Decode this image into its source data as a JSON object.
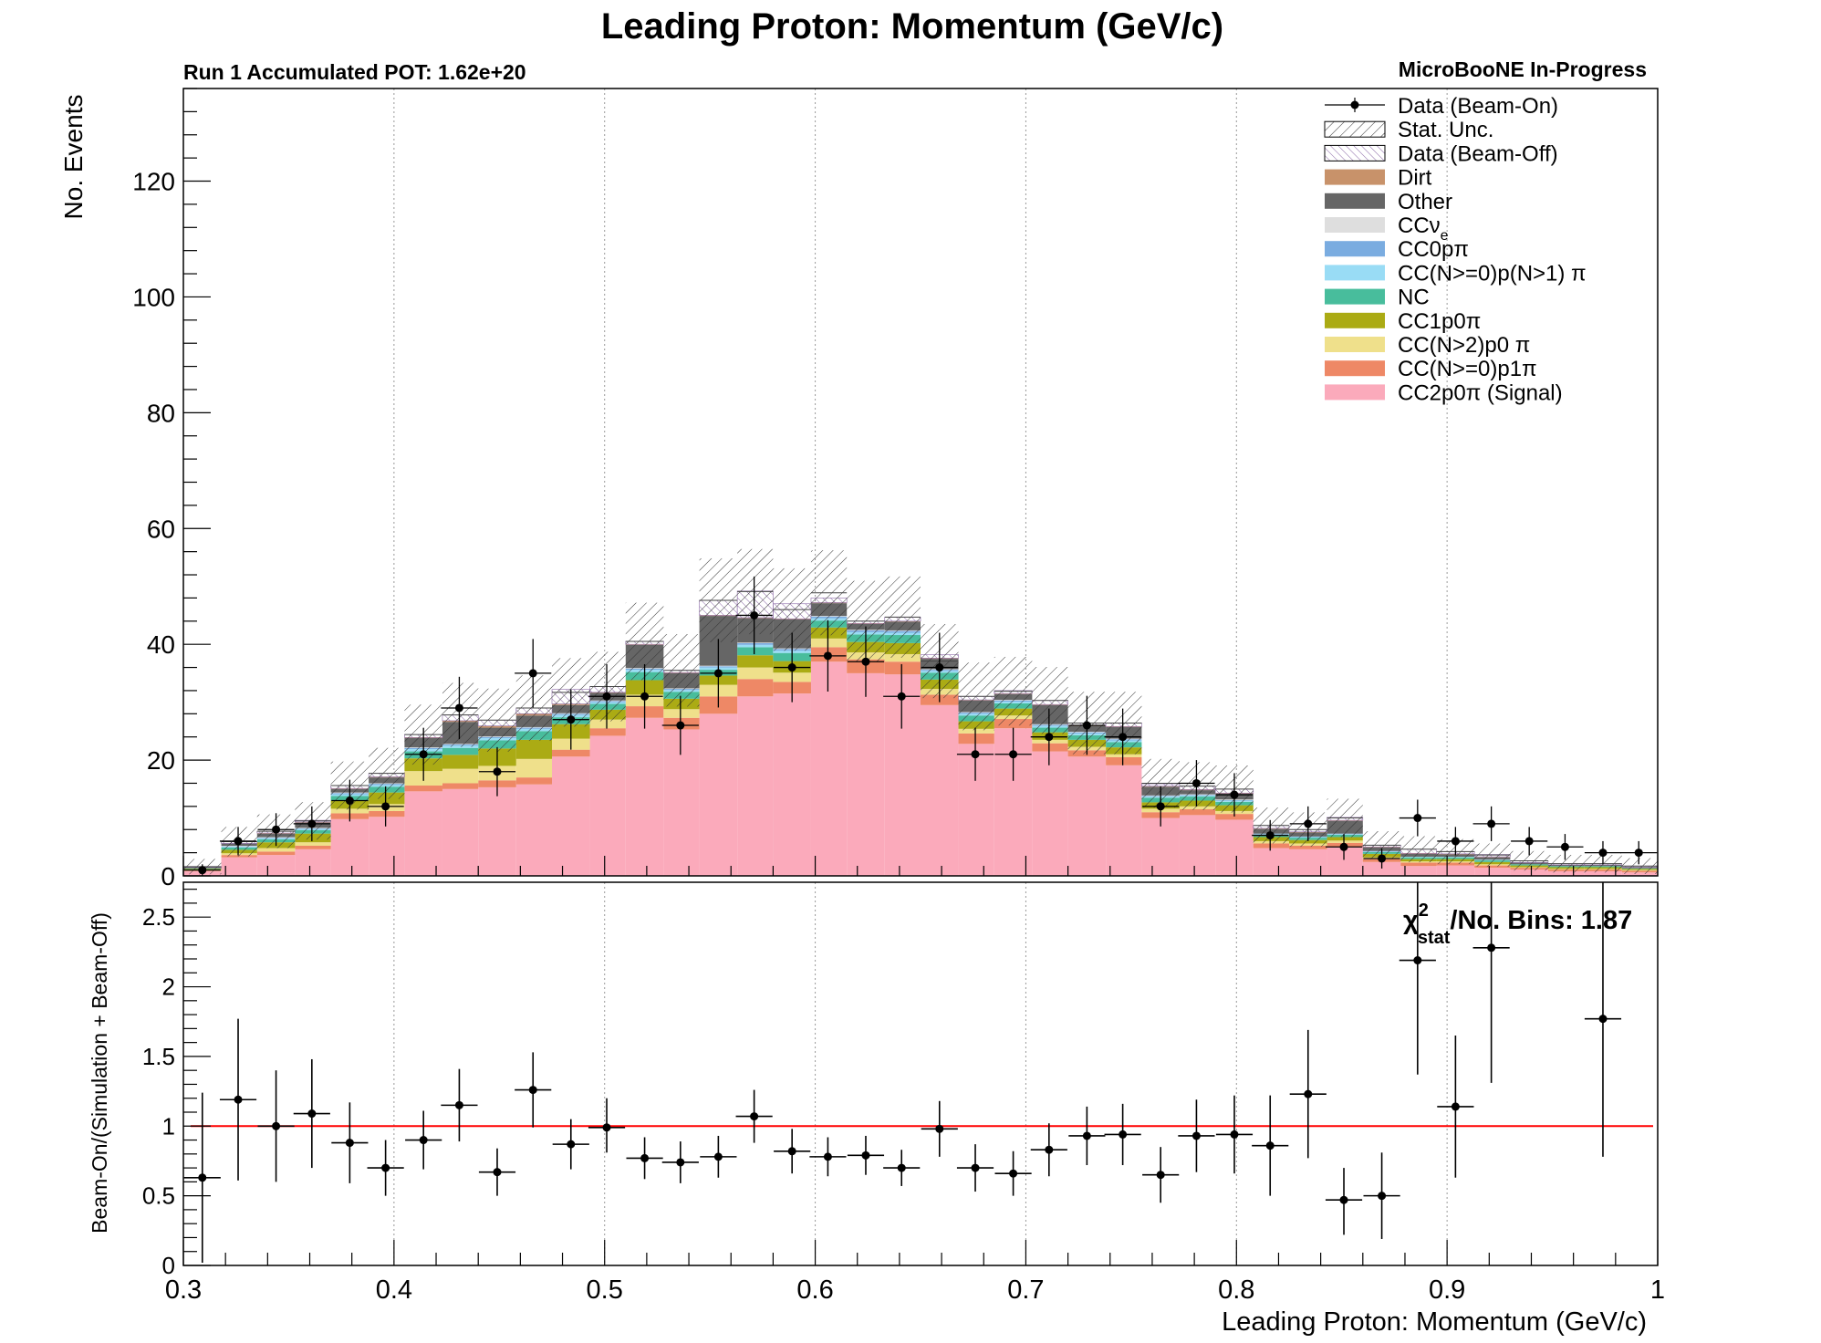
{
  "title": "Leading Proton: Momentum (GeV/c)",
  "pot_label": "Run 1 Accumulated POT: 1.62e+20",
  "collab_label": "MicroBooNE In-Progress",
  "chi2_label": {
    "chi": "χ",
    "sup": "2",
    "sub": "stat",
    "rest": "/No. Bins: 1.87"
  },
  "colors": {
    "stat_hatch": "#333333",
    "beam_off": "#8c6aa8",
    "dirt": "#c8926a",
    "other": "#666666",
    "ccnue": "#dedede",
    "cc0p": "#7aace0",
    "ccnpnpi": "#99dcf5",
    "nc": "#48bd9c",
    "cc1p0pi": "#abab14",
    "ccn2p0pi": "#efe08b",
    "ccnp1pi": "#ee8866",
    "signal": "#fbaabb",
    "ratio_line": "#ff0000"
  },
  "chart_data": [
    {
      "type": "bar",
      "subtype": "stacked-histogram",
      "title": "Leading Proton: Momentum (GeV/c)",
      "ylabel": "No. Events",
      "xlim": [
        0.3,
        1.0
      ],
      "ylim": [
        0,
        136
      ],
      "y_ticks": [
        "0",
        "20",
        "40",
        "60",
        "80",
        "100",
        "120"
      ],
      "grid": "vertical dotted at x ticks",
      "legend_position": "top-right",
      "legend": [
        {
          "key": "data",
          "label": "Data (Beam-On)",
          "style": "marker"
        },
        {
          "key": "stat",
          "label": "Stat. Unc.",
          "style": "hatch"
        },
        {
          "key": "beam_off",
          "label": "Data (Beam-Off)",
          "style": "hatch-purple"
        },
        {
          "key": "dirt",
          "label": "Dirt",
          "style": "fill"
        },
        {
          "key": "other",
          "label": "Other",
          "style": "fill"
        },
        {
          "key": "ccnue",
          "label": "CCν",
          "sub": "e",
          "style": "fill"
        },
        {
          "key": "cc0p",
          "label": "CC0pπ",
          "style": "fill"
        },
        {
          "key": "ccnpnpi",
          "label": "CC(N>=0)p(N>1) π",
          "style": "fill"
        },
        {
          "key": "nc",
          "label": "NC",
          "style": "fill"
        },
        {
          "key": "cc1p0pi",
          "label": "CC1p0π",
          "style": "fill"
        },
        {
          "key": "ccn2p0pi",
          "label": "CC(N>2)p0 π",
          "style": "fill"
        },
        {
          "key": "ccnp1pi",
          "label": "CC(N>=0)p1π",
          "style": "fill"
        },
        {
          "key": "signal",
          "label": "CC2p0π (Signal)",
          "style": "fill"
        }
      ],
      "bin_edges": [
        0.3,
        0.318,
        0.335,
        0.353,
        0.37,
        0.388,
        0.405,
        0.423,
        0.44,
        0.458,
        0.475,
        0.493,
        0.51,
        0.528,
        0.545,
        0.563,
        0.58,
        0.598,
        0.615,
        0.633,
        0.65,
        0.668,
        0.685,
        0.703,
        0.72,
        0.738,
        0.755,
        0.773,
        0.79,
        0.808,
        0.825,
        0.843,
        0.86,
        0.878,
        0.895,
        0.913,
        0.93,
        0.948,
        0.965,
        0.983,
        1.0
      ],
      "stack_order": [
        "signal",
        "ccnp1pi",
        "ccn2p0pi",
        "cc1p0pi",
        "nc",
        "ccnpnpi",
        "cc0p",
        "ccnue",
        "other",
        "dirt",
        "beam_off"
      ],
      "series": [
        {
          "name": "CC2p0π (Signal)",
          "key": "signal",
          "values": [
            0.8,
            3.2,
            3.6,
            4.6,
            9.8,
            10.2,
            14.6,
            15.0,
            15.3,
            15.8,
            20.6,
            24.2,
            27.3,
            25.3,
            28.0,
            31.0,
            31.5,
            37.0,
            35.0,
            34.8,
            29.5,
            22.8,
            25.5,
            21.5,
            20.6,
            19.1,
            10.0,
            10.5,
            9.7,
            4.8,
            4.6,
            5.0,
            2.4,
            1.7,
            1.8,
            1.4,
            1.1,
            0.8,
            0.8,
            0.6
          ]
        },
        {
          "name": "CC(N>=0)p1π",
          "key": "ccnp1pi",
          "values": [
            0.1,
            0.4,
            0.6,
            0.6,
            1.0,
            1.0,
            1.0,
            1.0,
            1.2,
            1.2,
            1.2,
            1.3,
            2.0,
            2.0,
            3.0,
            3.0,
            2.0,
            2.5,
            2.4,
            2.2,
            1.8,
            1.8,
            1.6,
            1.4,
            1.1,
            1.4,
            1.0,
            1.0,
            1.0,
            0.8,
            0.6,
            0.7,
            0.5,
            0.6,
            0.5,
            0.4,
            0.3,
            0.3,
            0.3,
            0.3
          ]
        },
        {
          "name": "CC(N>2)p0 π",
          "key": "ccn2p0pi",
          "values": [
            0.1,
            0.3,
            0.6,
            0.6,
            0.8,
            1.2,
            2.5,
            2.5,
            2.5,
            3.2,
            1.9,
            1.5,
            2.0,
            1.5,
            2.0,
            2.0,
            1.6,
            1.5,
            1.2,
            1.3,
            1.0,
            0.8,
            0.6,
            0.6,
            0.6,
            0.5,
            0.6,
            0.5,
            0.5,
            0.4,
            0.4,
            0.4,
            0.3,
            0.2,
            0.2,
            0.2,
            0.1,
            0.1,
            0.1,
            0.1
          ]
        },
        {
          "name": "CC1p0π",
          "key": "cc1p0pi",
          "values": [
            0.2,
            0.6,
            1.0,
            1.5,
            1.4,
            2.0,
            2.2,
            2.4,
            3.0,
            3.3,
            2.5,
            1.7,
            2.5,
            1.8,
            1.6,
            2.1,
            2.0,
            1.9,
            1.8,
            1.9,
            1.6,
            1.3,
            1.2,
            1.3,
            1.2,
            1.2,
            1.1,
            1.0,
            1.0,
            0.7,
            0.6,
            0.6,
            0.6,
            0.4,
            0.4,
            0.4,
            0.3,
            0.3,
            0.3,
            0.2
          ]
        },
        {
          "name": "NC",
          "key": "nc",
          "values": [
            0.1,
            0.4,
            0.5,
            0.6,
            0.8,
            1.0,
            1.2,
            1.2,
            1.4,
            1.5,
            1.2,
            1.0,
            1.4,
            1.2,
            1.0,
            1.4,
            1.4,
            1.2,
            1.3,
            1.4,
            1.2,
            1.0,
            0.9,
            0.8,
            0.8,
            0.9,
            0.8,
            0.7,
            0.6,
            0.4,
            0.4,
            0.4,
            0.3,
            0.3,
            0.3,
            0.3,
            0.2,
            0.2,
            0.2,
            0.1
          ]
        },
        {
          "name": "CC(N>=0)p(N>1) π",
          "key": "ccnpnpi",
          "values": [
            0.0,
            0.1,
            0.2,
            0.2,
            0.3,
            0.3,
            0.4,
            0.4,
            0.4,
            0.4,
            0.4,
            0.3,
            0.4,
            0.3,
            0.4,
            0.4,
            0.4,
            0.4,
            0.4,
            0.4,
            0.3,
            0.3,
            0.3,
            0.3,
            0.3,
            0.3,
            0.2,
            0.2,
            0.2,
            0.1,
            0.1,
            0.1,
            0.1,
            0.1,
            0.1,
            0.1,
            0.0,
            0.0,
            0.0,
            0.0
          ]
        },
        {
          "name": "CC0pπ",
          "key": "cc0p",
          "values": [
            0.0,
            0.1,
            0.1,
            0.1,
            0.2,
            0.2,
            0.2,
            0.2,
            0.2,
            0.2,
            0.2,
            0.2,
            0.2,
            0.2,
            0.2,
            0.3,
            0.3,
            0.3,
            0.3,
            0.3,
            0.2,
            0.2,
            0.2,
            0.2,
            0.2,
            0.2,
            0.1,
            0.1,
            0.1,
            0.1,
            0.1,
            0.1,
            0.1,
            0.0,
            0.0,
            0.0,
            0.0,
            0.0,
            0.0,
            0.0
          ]
        },
        {
          "name": "CCν_e",
          "key": "ccnue",
          "values": [
            0.0,
            0.1,
            0.1,
            0.1,
            0.1,
            0.1,
            0.1,
            0.1,
            0.1,
            0.1,
            0.1,
            0.1,
            0.1,
            0.1,
            0.1,
            0.1,
            0.1,
            0.1,
            0.1,
            0.1,
            0.1,
            0.1,
            0.1,
            0.1,
            0.1,
            0.1,
            0.1,
            0.1,
            0.1,
            0.0,
            0.0,
            0.0,
            0.0,
            0.0,
            0.0,
            0.0,
            0.0,
            0.0,
            0.0,
            0.0
          ]
        },
        {
          "name": "Other",
          "key": "other",
          "values": [
            0.2,
            0.4,
            0.6,
            0.9,
            0.6,
            1.0,
            1.6,
            3.8,
            1.5,
            2.0,
            1.4,
            1.3,
            4.0,
            2.6,
            8.6,
            4.2,
            5.0,
            2.2,
            1.0,
            1.5,
            1.8,
            2.0,
            1.0,
            3.3,
            1.0,
            2.0,
            1.5,
            0.7,
            1.0,
            0.8,
            0.7,
            2.2,
            0.6,
            0.5,
            0.4,
            0.4,
            0.3,
            0.2,
            0.2,
            0.2
          ]
        },
        {
          "name": "Dirt",
          "key": "dirt",
          "values": [
            0.0,
            0.0,
            0.1,
            0.1,
            0.1,
            0.1,
            0.1,
            0.2,
            0.3,
            0.3,
            0.2,
            0.1,
            0.1,
            0.1,
            0.1,
            0.1,
            0.1,
            0.1,
            0.1,
            0.1,
            0.1,
            0.1,
            0.1,
            0.1,
            0.1,
            0.1,
            0.1,
            0.1,
            0.1,
            0.1,
            0.1,
            0.1,
            0.1,
            0.1,
            0.1,
            0.1,
            0.0,
            0.0,
            0.0,
            0.0
          ]
        },
        {
          "name": "Data (Beam-Off)",
          "key": "beam_off",
          "values": [
            0.1,
            0.3,
            0.3,
            0.3,
            0.5,
            0.6,
            0.5,
            1.0,
            1.0,
            1.0,
            2.5,
            1.0,
            0.5,
            0.4,
            2.6,
            4.6,
            2.6,
            0.8,
            0.4,
            0.7,
            0.6,
            0.6,
            0.5,
            0.7,
            0.4,
            0.6,
            0.4,
            0.6,
            0.7,
            0.5,
            0.4,
            0.5,
            0.3,
            0.7,
            0.4,
            0.4,
            0.3,
            0.2,
            0.2,
            0.2
          ]
        }
      ],
      "total_mc": [
        1.6,
        5.9,
        7.7,
        9.5,
        15.6,
        17.7,
        24.4,
        27.8,
        26.9,
        29.0,
        31.7,
        32.7,
        40.5,
        35.5,
        47.6,
        49.1,
        46.0,
        48.9,
        44.0,
        44.7,
        37.1,
        31.0,
        31.9,
        30.3,
        26.4,
        26.4,
        16.0,
        15.5,
        15.0,
        8.7,
        8.0,
        10.0,
        5.3,
        4.6,
        4.2,
        3.6,
        2.6,
        2.1,
        2.1,
        1.7
      ],
      "data": {
        "x": [
          0.309,
          0.326,
          0.344,
          0.361,
          0.379,
          0.396,
          0.414,
          0.431,
          0.449,
          0.466,
          0.484,
          0.501,
          0.519,
          0.536,
          0.554,
          0.571,
          0.589,
          0.606,
          0.624,
          0.641,
          0.659,
          0.676,
          0.694,
          0.711,
          0.729,
          0.746,
          0.764,
          0.781,
          0.799,
          0.816,
          0.834,
          0.851,
          0.869,
          0.886,
          0.904,
          0.921,
          0.939,
          0.956,
          0.974,
          0.991
        ],
        "y": [
          1,
          6,
          8,
          9,
          13,
          12,
          21,
          29,
          18,
          35,
          27,
          31,
          31,
          26,
          35,
          45,
          36,
          38,
          37,
          31,
          36,
          21,
          21,
          24,
          26,
          24,
          12,
          16,
          14,
          7,
          9,
          5,
          3,
          10,
          6,
          9,
          6,
          5,
          4,
          4
        ],
        "x_half_width": 0.0087
      }
    },
    {
      "type": "scatter",
      "subtype": "ratio-with-errors",
      "xlabel": "Leading Proton: Momentum (GeV/c)",
      "ylabel": "Beam-On/(Simulation + Beam-Off)",
      "xlim": [
        0.3,
        1.0
      ],
      "ylim": [
        0,
        2.75
      ],
      "x_ticks": [
        "0.3",
        "0.4",
        "0.5",
        "0.6",
        "0.7",
        "0.8",
        "0.9",
        "1"
      ],
      "y_ticks": [
        "0",
        "0.5",
        "1",
        "1.5",
        "2",
        "2.5"
      ],
      "reference_line": 1,
      "x": [
        0.309,
        0.326,
        0.344,
        0.361,
        0.379,
        0.396,
        0.414,
        0.431,
        0.449,
        0.466,
        0.484,
        0.501,
        0.519,
        0.536,
        0.554,
        0.571,
        0.589,
        0.606,
        0.624,
        0.641,
        0.659,
        0.676,
        0.694,
        0.711,
        0.729,
        0.746,
        0.764,
        0.781,
        0.799,
        0.816,
        0.834,
        0.851,
        0.869,
        0.886,
        0.904,
        0.921,
        0.939,
        0.956,
        0.974,
        0.991
      ],
      "y": [
        0.63,
        1.19,
        1.0,
        1.09,
        0.88,
        0.7,
        0.9,
        1.15,
        0.67,
        1.26,
        0.87,
        0.99,
        0.77,
        0.74,
        0.78,
        1.07,
        0.82,
        0.78,
        0.79,
        0.7,
        0.98,
        0.7,
        0.66,
        0.83,
        0.93,
        0.94,
        0.65,
        0.93,
        0.94,
        0.86,
        1.23,
        0.47,
        0.5,
        2.19,
        1.14,
        2.28,
        null,
        null,
        1.77,
        null
      ],
      "err_low": [
        0.61,
        0.58,
        0.4,
        0.39,
        0.29,
        0.2,
        0.21,
        0.26,
        0.17,
        0.27,
        0.18,
        0.18,
        0.15,
        0.15,
        0.15,
        0.19,
        0.16,
        0.14,
        0.14,
        0.13,
        0.2,
        0.17,
        0.16,
        0.19,
        0.21,
        0.22,
        0.2,
        0.26,
        0.28,
        0.36,
        0.46,
        0.25,
        0.31,
        0.82,
        0.51,
        0.97,
        null,
        null,
        0.99,
        null
      ],
      "err_high": [
        0.61,
        0.58,
        0.4,
        0.39,
        0.29,
        0.2,
        0.21,
        0.26,
        0.17,
        0.27,
        0.18,
        0.21,
        0.15,
        0.15,
        0.15,
        0.19,
        0.16,
        0.14,
        0.14,
        0.13,
        0.2,
        0.17,
        0.16,
        0.19,
        0.21,
        0.22,
        0.2,
        0.26,
        0.28,
        0.36,
        0.46,
        0.23,
        0.31,
        0.82,
        0.51,
        0.97,
        null,
        null,
        0.99,
        null
      ],
      "x_half_width": 0.0087
    }
  ]
}
